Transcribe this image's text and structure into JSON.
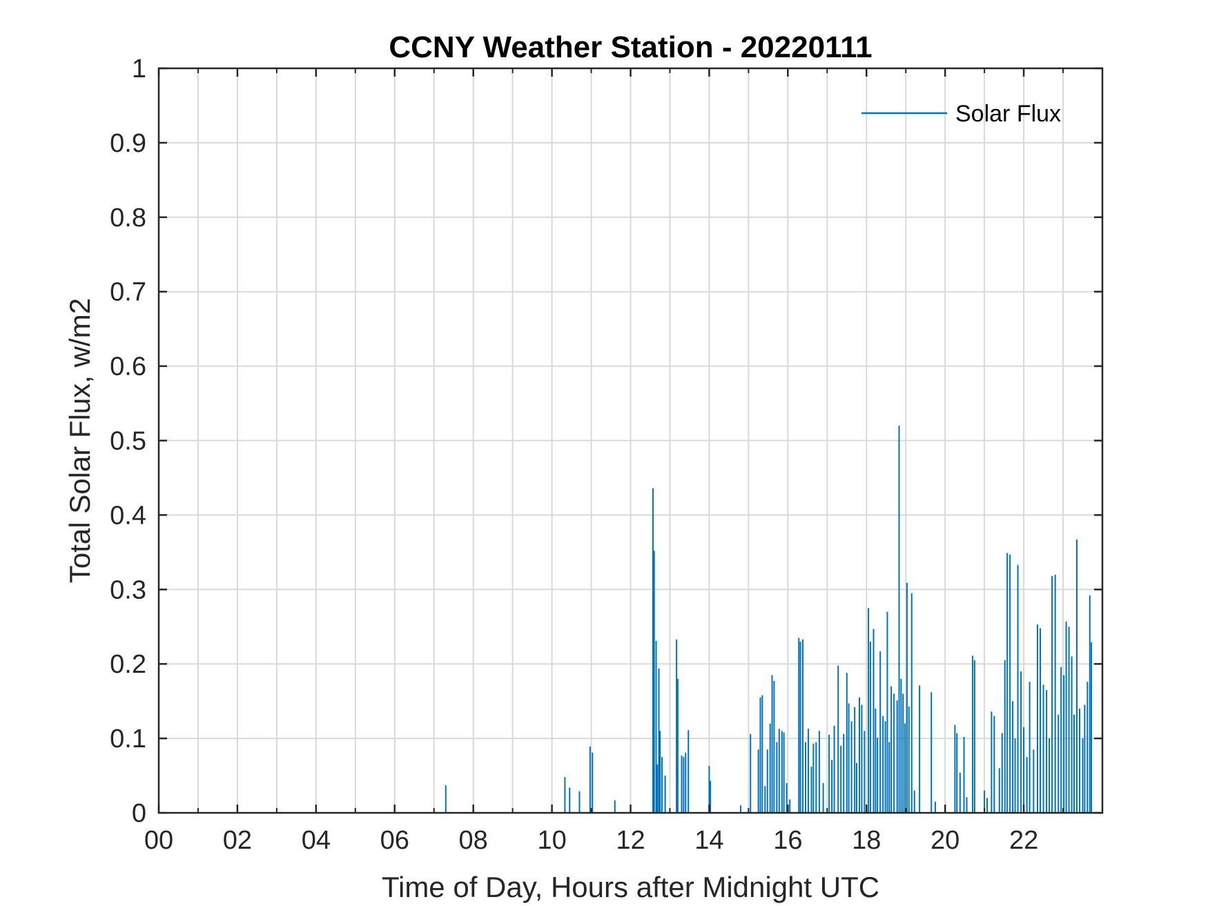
{
  "chart_data": {
    "type": "line",
    "title": "CCNY Weather Station - 20220111",
    "xlabel": "Time of Day, Hours after Midnight UTC",
    "ylabel": "Total Solar Flux, w/m2",
    "xlim": [
      0,
      24
    ],
    "ylim": [
      0,
      1
    ],
    "x_ticks": [
      0,
      2,
      4,
      6,
      8,
      10,
      12,
      14,
      16,
      18,
      20,
      22
    ],
    "x_tick_labels": [
      "00",
      "02",
      "04",
      "06",
      "08",
      "10",
      "12",
      "14",
      "16",
      "18",
      "20",
      "22"
    ],
    "y_ticks": [
      0,
      0.1,
      0.2,
      0.3,
      0.4,
      0.5,
      0.6,
      0.7,
      0.8,
      0.9,
      1
    ],
    "y_tick_labels": [
      "0",
      "0.1",
      "0.2",
      "0.3",
      "0.4",
      "0.5",
      "0.6",
      "0.7",
      "0.8",
      "0.9",
      "1"
    ],
    "grid": true,
    "minor_x_grid": true,
    "legend_position": "top-right",
    "series": [
      {
        "name": "Solar Flux",
        "color": "#0072BD",
        "x": [
          7.3,
          10.33,
          10.45,
          10.7,
          10.97,
          11.03,
          11.6,
          12.57,
          12.6,
          12.65,
          12.68,
          12.72,
          12.75,
          12.8,
          12.88,
          13.17,
          13.2,
          13.3,
          13.35,
          13.4,
          13.47,
          14.0,
          14.03,
          14.8,
          15.05,
          15.25,
          15.3,
          15.35,
          15.42,
          15.48,
          15.55,
          15.6,
          15.65,
          15.72,
          15.78,
          15.85,
          15.9,
          15.97,
          16.05,
          16.28,
          16.32,
          16.38,
          16.45,
          16.52,
          16.6,
          16.65,
          16.72,
          16.8,
          16.9,
          17.05,
          17.12,
          17.18,
          17.28,
          17.35,
          17.42,
          17.5,
          17.55,
          17.62,
          17.7,
          17.75,
          17.82,
          17.88,
          17.95,
          18.05,
          18.1,
          18.18,
          18.23,
          18.28,
          18.35,
          18.42,
          18.48,
          18.53,
          18.58,
          18.63,
          18.7,
          18.78,
          18.83,
          18.88,
          18.93,
          18.98,
          19.03,
          19.08,
          19.15,
          19.22,
          19.35,
          19.65,
          19.75,
          20.25,
          20.3,
          20.38,
          20.48,
          20.55,
          20.7,
          20.75,
          21.0,
          21.07,
          21.18,
          21.25,
          21.38,
          21.45,
          21.52,
          21.58,
          21.65,
          21.72,
          21.78,
          21.85,
          21.93,
          22.0,
          22.08,
          22.15,
          22.25,
          22.35,
          22.42,
          22.5,
          22.58,
          22.65,
          22.72,
          22.8,
          22.88,
          22.95,
          23.02,
          23.08,
          23.15,
          23.22,
          23.28,
          23.35,
          23.42,
          23.5,
          23.55,
          23.62,
          23.68,
          23.72
        ],
        "y": [
          0.037,
          0.048,
          0.034,
          0.029,
          0.089,
          0.081,
          0.017,
          0.436,
          0.352,
          0.231,
          0.065,
          0.194,
          0.11,
          0.075,
          0.05,
          0.233,
          0.18,
          0.077,
          0.075,
          0.081,
          0.111,
          0.063,
          0.043,
          0.01,
          0.106,
          0.085,
          0.155,
          0.158,
          0.036,
          0.085,
          0.12,
          0.185,
          0.177,
          0.095,
          0.113,
          0.11,
          0.108,
          0.04,
          0.018,
          0.235,
          0.23,
          0.233,
          0.095,
          0.113,
          0.062,
          0.093,
          0.095,
          0.11,
          0.04,
          0.105,
          0.071,
          0.117,
          0.198,
          0.09,
          0.106,
          0.188,
          0.147,
          0.123,
          0.142,
          0.067,
          0.155,
          0.145,
          0.11,
          0.275,
          0.23,
          0.247,
          0.14,
          0.101,
          0.217,
          0.13,
          0.123,
          0.27,
          0.095,
          0.17,
          0.16,
          0.151,
          0.52,
          0.18,
          0.16,
          0.12,
          0.309,
          0.143,
          0.295,
          0.03,
          0.171,
          0.162,
          0.015,
          0.118,
          0.107,
          0.054,
          0.102,
          0.021,
          0.211,
          0.205,
          0.03,
          0.02,
          0.136,
          0.13,
          0.06,
          0.107,
          0.205,
          0.349,
          0.347,
          0.15,
          0.1,
          0.333,
          0.19,
          0.115,
          0.075,
          0.176,
          0.085,
          0.253,
          0.248,
          0.172,
          0.165,
          0.1,
          0.318,
          0.32,
          0.132,
          0.196,
          0.185,
          0.257,
          0.25,
          0.21,
          0.132,
          0.367,
          0.14,
          0.1,
          0.145,
          0.176,
          0.292,
          0.229
        ]
      }
    ]
  }
}
